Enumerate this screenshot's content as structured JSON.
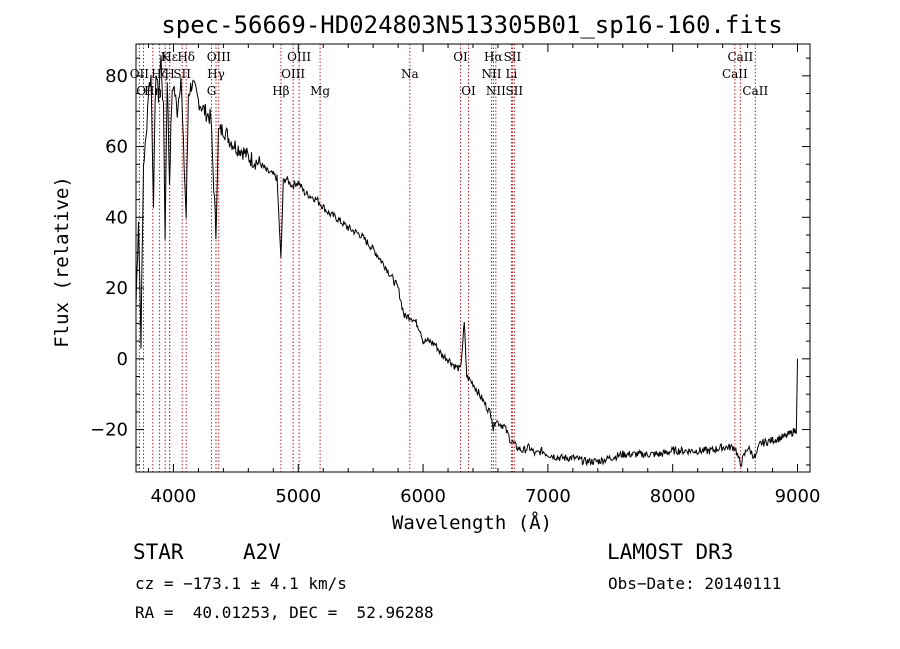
{
  "chart_data": {
    "type": "line",
    "title": "spec-56669-HD024803N513305B01_sp16-160.fits",
    "xlabel": "Wavelength (Å)",
    "ylabel": "Flux (relative)",
    "xlim": [
      3700,
      9100
    ],
    "ylim": [
      -32,
      89
    ],
    "xticks": [
      4000,
      5000,
      6000,
      7000,
      8000,
      9000
    ],
    "yticks": [
      -20,
      0,
      20,
      40,
      60,
      80
    ],
    "grid": false,
    "series": [
      {
        "name": "spectrum",
        "x": [
          3700,
          3720,
          3740,
          3760,
          3780,
          3800,
          3820,
          3840,
          3860,
          3880,
          3900,
          3920,
          3933,
          3950,
          3968,
          3985,
          4000,
          4030,
          4060,
          4080,
          4102,
          4120,
          4150,
          4200,
          4250,
          4300,
          4340,
          4360,
          4400,
          4450,
          4500,
          4550,
          4600,
          4650,
          4700,
          4750,
          4800,
          4830,
          4861,
          4880,
          4900,
          4950,
          5000,
          5050,
          5100,
          5150,
          5200,
          5250,
          5300,
          5400,
          5500,
          5600,
          5700,
          5800,
          5850,
          5900,
          5950,
          5980,
          6000,
          6050,
          6100,
          6150,
          6200,
          6250,
          6300,
          6330,
          6350,
          6400,
          6450,
          6500,
          6550,
          6563,
          6580,
          6600,
          6650,
          6700,
          6750,
          6800,
          6850,
          6900,
          6950,
          7000,
          7100,
          7200,
          7300,
          7400,
          7500,
          7600,
          7700,
          7800,
          7900,
          8000,
          8100,
          8200,
          8300,
          8400,
          8500,
          8542,
          8600,
          8662,
          8700,
          8800,
          8900,
          8950,
          8990,
          9000
        ],
        "y": [
          15,
          40,
          5,
          55,
          62,
          76,
          80,
          45,
          82,
          74,
          85,
          70,
          35,
          80,
          50,
          72,
          78,
          70,
          80,
          60,
          40,
          75,
          78,
          73,
          70,
          68,
          35,
          64,
          65,
          62,
          60,
          59,
          57,
          56,
          55,
          53,
          52,
          51,
          28,
          50,
          51,
          49,
          50,
          47,
          46,
          45,
          43,
          41,
          40,
          37,
          35,
          31,
          26,
          20,
          12,
          12,
          10,
          8,
          5,
          5,
          4,
          1,
          0,
          -2,
          -3,
          10,
          -5,
          -7,
          -10,
          -13,
          -16,
          -20,
          -17,
          -18,
          -19,
          -23,
          -25,
          -26,
          -25,
          -27,
          -26,
          -27,
          -28,
          -28,
          -29,
          -29,
          -28,
          -27,
          -27,
          -27,
          -27,
          -26,
          -26,
          -26,
          -26,
          -25,
          -25,
          -30,
          -25,
          -28,
          -24,
          -23,
          -22,
          -21,
          -20,
          0
        ]
      }
    ],
    "line_markers": [
      {
        "label": "Hε",
        "wavelength": 3970,
        "row": 0
      },
      {
        "label": "K",
        "wavelength": 3934,
        "row": 0
      },
      {
        "label": "Hδ",
        "wavelength": 4102,
        "row": 0
      },
      {
        "label": "OII",
        "wavelength": 3727,
        "row": 1
      },
      {
        "label": "Hζ",
        "wavelength": 3889,
        "row": 1
      },
      {
        "label": "H",
        "wavelength": 3969,
        "row": 1
      },
      {
        "label": "SII",
        "wavelength": 4070,
        "row": 1
      },
      {
        "label": "OI",
        "wavelength": 3760,
        "row": 2
      },
      {
        "label": "Hη",
        "wavelength": 3835,
        "row": 2
      },
      {
        "label": "OIII",
        "wavelength": 4363,
        "row": 0
      },
      {
        "label": "Hγ",
        "wavelength": 4341,
        "row": 1
      },
      {
        "label": "G",
        "wavelength": 4305,
        "row": 2
      },
      {
        "label": "OIII",
        "wavelength": 5007,
        "row": 0
      },
      {
        "label": "OIII",
        "wavelength": 4959,
        "row": 1
      },
      {
        "label": "Hβ",
        "wavelength": 4861,
        "row": 2
      },
      {
        "label": "Mg",
        "wavelength": 5175,
        "row": 2
      },
      {
        "label": "Na",
        "wavelength": 5894,
        "row": 1
      },
      {
        "label": "OI",
        "wavelength": 6300,
        "row": 0
      },
      {
        "label": "OI",
        "wavelength": 6364,
        "row": 2
      },
      {
        "label": "Hα",
        "wavelength": 6563,
        "row": 0
      },
      {
        "label": "SII",
        "wavelength": 6716,
        "row": 0
      },
      {
        "label": "NII",
        "wavelength": 6548,
        "row": 1
      },
      {
        "label": "Li",
        "wavelength": 6708,
        "row": 1
      },
      {
        "label": "NII",
        "wavelength": 6583,
        "row": 2
      },
      {
        "label": "SII",
        "wavelength": 6731,
        "row": 2
      },
      {
        "label": "CaII",
        "wavelength": 8542,
        "row": 0
      },
      {
        "label": "CaII",
        "wavelength": 8498,
        "row": 1
      },
      {
        "label": "CaII",
        "wavelength": 8662,
        "row": 2
      }
    ]
  },
  "info": {
    "class": "STAR",
    "subclass": "A2V",
    "survey": "LAMOST DR3",
    "redshift_line": "cz = −173.1 ± 4.1 km/s",
    "obs_date_line": "Obs−Date: 20140111",
    "coords_line": "RA =  40.01253, DEC =  52.96288"
  }
}
